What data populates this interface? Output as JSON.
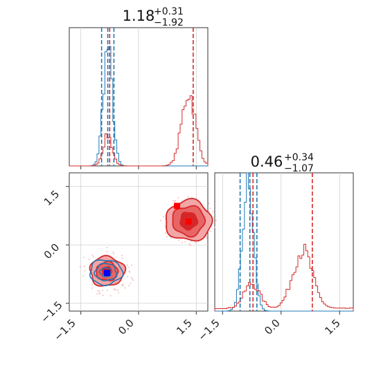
{
  "chart_data": {
    "type": "corner",
    "grid": true,
    "colors": {
      "blue": "#1f77b4",
      "red": "#d62728",
      "red_light": "#f3a6a6",
      "red_mid": "#e86565"
    },
    "params": [
      {
        "title_main": "1.18",
        "title_sup": "+0.31",
        "title_sub": "−1.92",
        "range": [
          -1.8,
          1.8
        ],
        "ticks": [
          -1.5,
          0.0,
          1.5
        ],
        "tick_labels": [
          "−1.5",
          "0.0",
          "1.5"
        ]
      },
      {
        "title_main": "0.46",
        "title_sup": "+0.34",
        "title_sub": "−1.07",
        "range": [
          -1.7,
          1.85
        ],
        "ticks": [
          -1.5,
          0.0,
          1.5
        ],
        "tick_labels": [
          "−1.5",
          "0.0",
          "1.5"
        ]
      }
    ],
    "series": [
      {
        "color": "blue",
        "hist1d": {
          "p0": {
            "peak": -0.8,
            "width": 0.12,
            "amp": 0.85,
            "quantiles": [
              -0.96,
              -0.8,
              -0.64
            ]
          },
          "p1": {
            "peak": -0.85,
            "width": 0.14,
            "amp": 0.9,
            "quantiles": [
              -1.05,
              -0.8,
              -0.62
            ]
          }
        },
        "contour": {
          "center": [
            -0.85,
            -0.7
          ],
          "radii": [
            [
              0.15,
              0.12
            ],
            [
              0.28,
              0.22
            ],
            [
              0.42,
              0.32
            ]
          ]
        },
        "truth": [
          -0.82,
          -0.72
        ]
      },
      {
        "color": "red",
        "hist1d": {
          "p0": {
            "peaks": [
              [
                -0.8,
                0.12,
                0.22
              ],
              [
                1.3,
                0.18,
                0.53
              ]
            ],
            "quantiles": [
              -0.75,
              1.42
            ]
          },
          "p1": {
            "peaks": [
              [
                -0.75,
                0.2,
                0.18
              ],
              [
                0.55,
                0.25,
                0.42
              ]
            ],
            "quantiles": [
              -0.72,
              0.8
            ]
          }
        },
        "contour": [
          {
            "center": [
              -0.82,
              -0.68
            ],
            "radii": [
              [
                0.12,
                0.12
              ],
              [
                0.28,
                0.24
              ],
              [
                0.45,
                0.38
              ]
            ]
          },
          {
            "center": [
              1.3,
              0.62
            ],
            "radii": [
              [
                0.22,
                0.22
              ],
              [
                0.42,
                0.38
              ],
              [
                0.6,
                0.52
              ]
            ]
          }
        ],
        "truth": [
          [
            1.0,
            1.0
          ],
          [
            1.3,
            0.6
          ]
        ]
      }
    ]
  }
}
